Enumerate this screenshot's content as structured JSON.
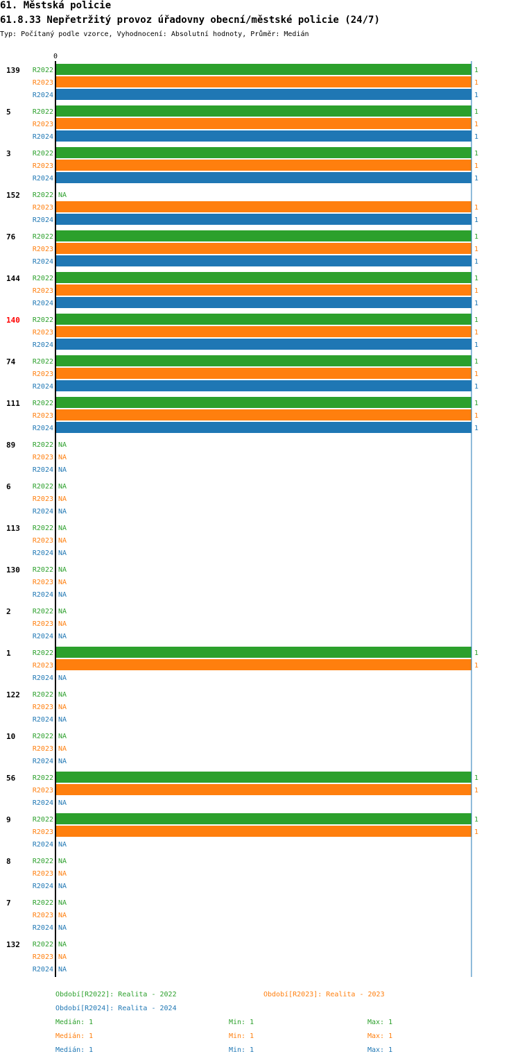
{
  "header": {
    "section_title": "61. Městská policie",
    "indicator_title": "61.8.33 Nepřetržitý provoz úřadovny obecní/městské policie (24/7)",
    "subtitle": "Typ: Počítaný podle vzorce, Vyhodnocení: Absolutní hodnoty, Průměr: Medián"
  },
  "colors": {
    "R2022": "#2ca02c",
    "R2023": "#ff7f0e",
    "R2024": "#1f77b4",
    "highlight": "#ff0000",
    "axis": "#000000"
  },
  "chart_data": {
    "type": "bar",
    "orientation": "horizontal",
    "title": "61.8.33 Nepřetržitý provoz úřadovny obecní/městské policie (24/7)",
    "xlim": [
      0,
      1
    ],
    "x_tick_labels": [
      "0"
    ],
    "series_names": [
      "R2022",
      "R2023",
      "R2024"
    ],
    "na_label": "NA",
    "highlighted_group": "140",
    "groups": [
      {
        "label": "139",
        "values": [
          1,
          1,
          1
        ]
      },
      {
        "label": "5",
        "values": [
          1,
          1,
          1
        ]
      },
      {
        "label": "3",
        "values": [
          1,
          1,
          1
        ]
      },
      {
        "label": "152",
        "values": [
          null,
          1,
          1
        ]
      },
      {
        "label": "76",
        "values": [
          1,
          1,
          1
        ]
      },
      {
        "label": "144",
        "values": [
          1,
          1,
          1
        ]
      },
      {
        "label": "140",
        "values": [
          1,
          1,
          1
        ]
      },
      {
        "label": "74",
        "values": [
          1,
          1,
          1
        ]
      },
      {
        "label": "111",
        "values": [
          1,
          1,
          1
        ]
      },
      {
        "label": "89",
        "values": [
          null,
          null,
          null
        ]
      },
      {
        "label": "6",
        "values": [
          null,
          null,
          null
        ]
      },
      {
        "label": "113",
        "values": [
          null,
          null,
          null
        ]
      },
      {
        "label": "130",
        "values": [
          null,
          null,
          null
        ]
      },
      {
        "label": "2",
        "values": [
          null,
          null,
          null
        ]
      },
      {
        "label": "1",
        "values": [
          1,
          1,
          null
        ]
      },
      {
        "label": "122",
        "values": [
          null,
          null,
          null
        ]
      },
      {
        "label": "10",
        "values": [
          null,
          null,
          null
        ]
      },
      {
        "label": "56",
        "values": [
          1,
          1,
          null
        ]
      },
      {
        "label": "9",
        "values": [
          1,
          1,
          null
        ]
      },
      {
        "label": "8",
        "values": [
          null,
          null,
          null
        ]
      },
      {
        "label": "7",
        "values": [
          null,
          null,
          null
        ]
      },
      {
        "label": "132",
        "values": [
          null,
          null,
          null
        ]
      }
    ]
  },
  "legend": {
    "r2022": "Období[R2022]: Realita - 2022",
    "r2023": "Období[R2023]: Realita - 2023",
    "r2024": "Období[R2024]: Realita - 2024",
    "stats": [
      {
        "series": "R2022",
        "median": "Medián: 1",
        "min": "Min: 1",
        "max": "Max: 1"
      },
      {
        "series": "R2023",
        "median": "Medián: 1",
        "min": "Min: 1",
        "max": "Max: 1"
      },
      {
        "series": "R2024",
        "median": "Medián: 1",
        "min": "Min: 1",
        "max": "Max: 1"
      }
    ]
  }
}
